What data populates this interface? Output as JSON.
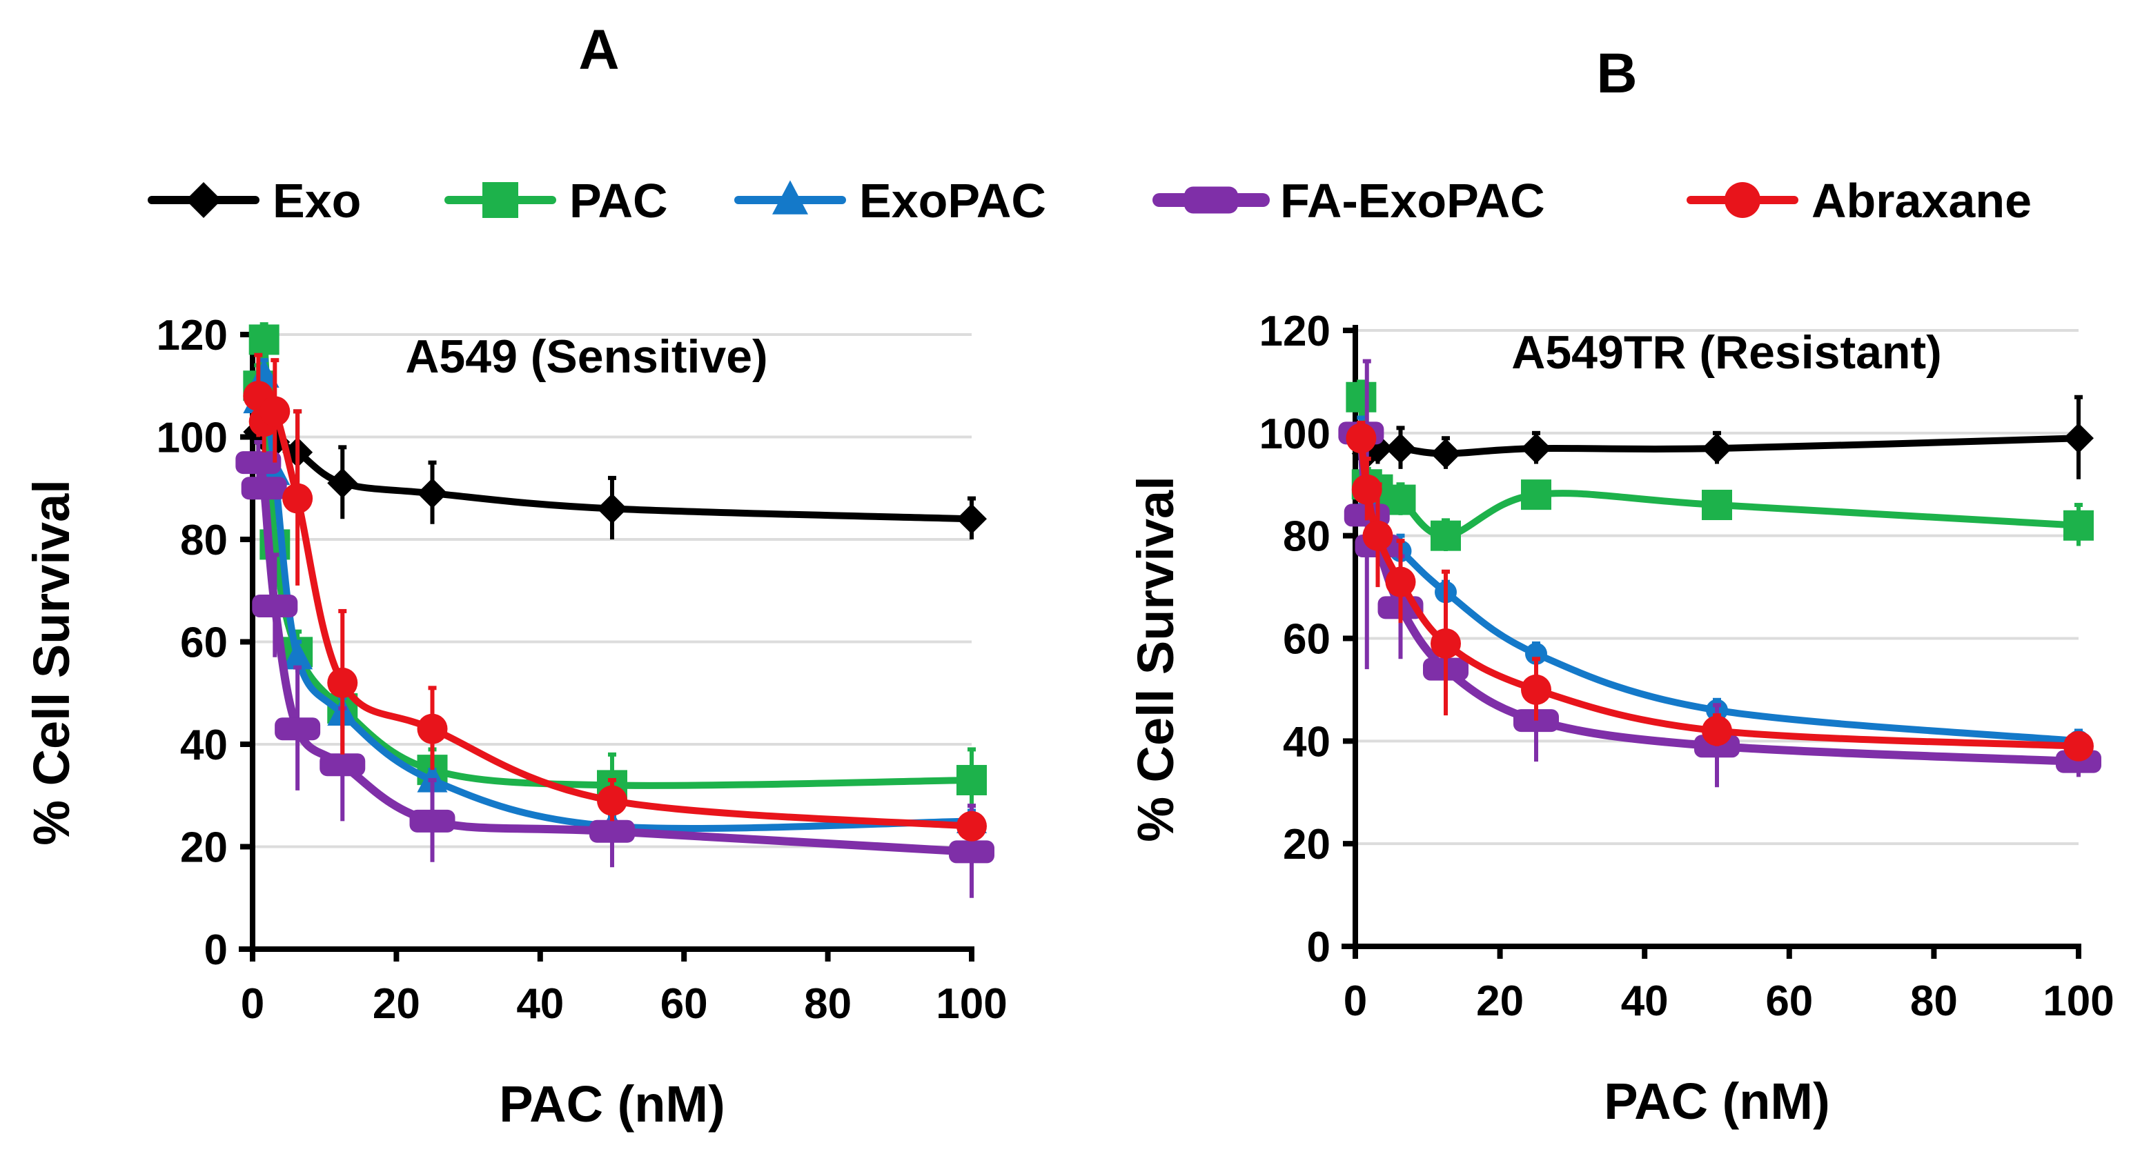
{
  "legend": [
    {
      "name": "Exo",
      "color": "#000000",
      "marker": "diamond"
    },
    {
      "name": "PAC",
      "color": "#1db24b",
      "marker": "square"
    },
    {
      "name": "ExoPAC",
      "color": "#1479c9",
      "marker": "triangle"
    },
    {
      "name": "FA-ExoPAC",
      "color": "#7f2fa8",
      "marker": "bar"
    },
    {
      "name": "Abraxane",
      "color": "#e8141b",
      "marker": "circle"
    }
  ],
  "chart_data": [
    {
      "type": "line",
      "panel_label": "A",
      "title": "A549 (Sensitive)",
      "xlabel": "PAC (nM)",
      "ylabel": "% Cell Survival",
      "xlim": [
        0,
        100
      ],
      "ylim": [
        0,
        120
      ],
      "xticks": [
        "0",
        "20",
        "40",
        "60",
        "80",
        "100"
      ],
      "yticks": [
        "0",
        "20",
        "40",
        "60",
        "80",
        "100",
        "120"
      ],
      "grid": true,
      "x": [
        0.8,
        1.6,
        3.1,
        6.25,
        12.5,
        25,
        50,
        100
      ],
      "series": [
        {
          "name": "Exo",
          "values": [
            101,
            100,
            99,
            97,
            91,
            89,
            86,
            84
          ],
          "err": [
            4,
            4,
            4,
            8,
            7,
            6,
            6,
            4
          ]
        },
        {
          "name": "PAC",
          "values": [
            110,
            119,
            79,
            58,
            47,
            35,
            32,
            33
          ],
          "err": [
            4,
            3,
            4,
            4,
            3,
            4,
            6,
            6
          ]
        },
        {
          "name": "ExoPAC",
          "values": [
            107,
            112,
            93,
            57,
            46,
            33,
            24,
            25
          ],
          "err": [
            3,
            3,
            3,
            3,
            3,
            2,
            2,
            2
          ]
        },
        {
          "name": "FA-ExoPAC",
          "values": [
            95,
            90,
            67,
            43,
            36,
            25,
            23,
            19
          ],
          "err": [
            4,
            4,
            10,
            12,
            11,
            8,
            7,
            9
          ]
        },
        {
          "name": "Abraxane",
          "values": [
            108,
            103,
            105,
            88,
            52,
            43,
            29,
            24
          ],
          "err": [
            8,
            6,
            10,
            17,
            14,
            8,
            4,
            2
          ]
        }
      ]
    },
    {
      "type": "line",
      "panel_label": "B",
      "title": "A549TR (Resistant)",
      "xlabel": "PAC (nM)",
      "ylabel": "% Cell Survival",
      "xlim": [
        0,
        100
      ],
      "ylim": [
        0,
        120
      ],
      "xticks": [
        "0",
        "20",
        "40",
        "60",
        "80",
        "100"
      ],
      "yticks": [
        "0",
        "20",
        "40",
        "60",
        "80",
        "100",
        "120"
      ],
      "grid": true,
      "x": [
        0.8,
        1.6,
        3.1,
        6.25,
        12.5,
        25,
        50,
        100
      ],
      "series": [
        {
          "name": "Exo",
          "values": [
            100,
            96,
            97,
            97,
            96,
            97,
            97,
            99
          ],
          "err": [
            3,
            3,
            3,
            4,
            3,
            3,
            3,
            8
          ]
        },
        {
          "name": "PAC",
          "values": [
            107,
            90,
            89,
            87,
            80,
            88,
            86,
            82
          ],
          "err": [
            3,
            3,
            3,
            3,
            3,
            2,
            2,
            4
          ]
        },
        {
          "name": "ExoPAC",
          "values": [
            100,
            85,
            80,
            77,
            69,
            57,
            46,
            40
          ],
          "err": [
            3,
            3,
            3,
            3,
            2,
            2,
            2,
            2
          ]
        },
        {
          "name": "FA-ExoPAC",
          "values": [
            100,
            84,
            78,
            66,
            54,
            44,
            39,
            36
          ],
          "err": [
            2,
            30,
            6,
            10,
            6,
            8,
            8,
            3
          ]
        },
        {
          "name": "Abraxane",
          "values": [
            99,
            89,
            80,
            71,
            59,
            50,
            42,
            39
          ],
          "err": [
            3,
            6,
            10,
            8,
            14,
            6,
            3,
            2
          ]
        }
      ]
    }
  ]
}
